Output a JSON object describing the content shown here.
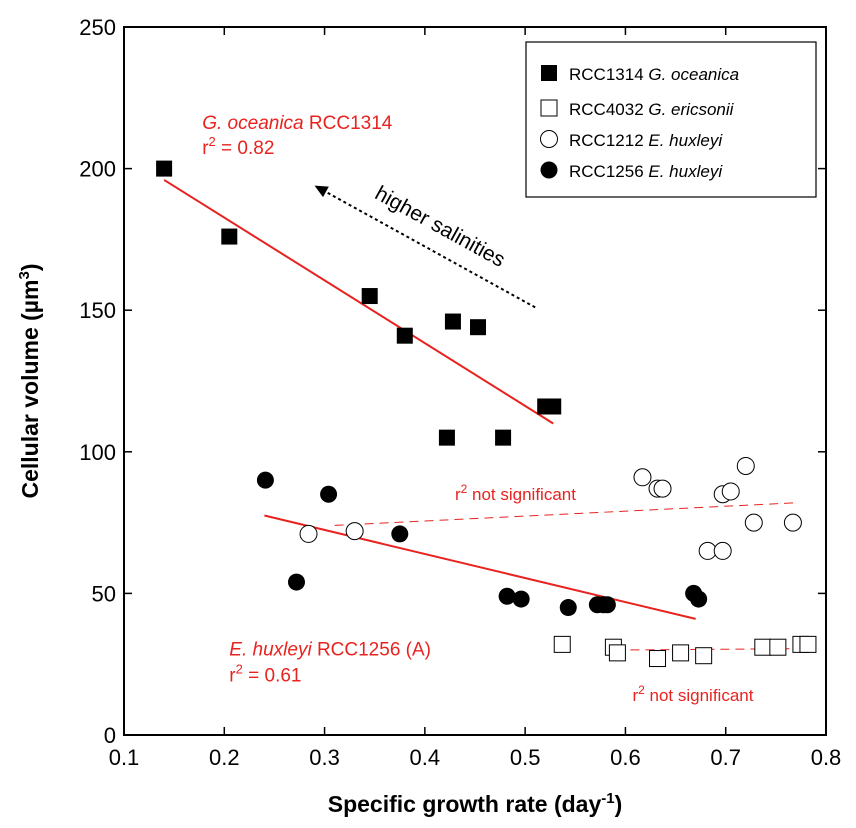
{
  "chart_data": {
    "type": "scatter",
    "xlabel": "Specific growth rate (day",
    "xlabel_sup": "-1",
    "xlabel_end": ")",
    "ylabel": "Cellular volume (µm",
    "ylabel_sup": "3",
    "ylabel_end": ")",
    "xlim": [
      0.1,
      0.8
    ],
    "ylim": [
      0,
      250
    ],
    "xticks": [
      0.1,
      0.2,
      0.3,
      0.4,
      0.5,
      0.6,
      0.7,
      0.8
    ],
    "xtick_labels": [
      "0.1",
      "0.2",
      "0.3",
      "0.4",
      "0.5",
      "0.6",
      "0.7",
      "0.8"
    ],
    "yticks": [
      0,
      50,
      100,
      150,
      200,
      250
    ],
    "ytick_labels": [
      "0",
      "50",
      "100",
      "150",
      "200",
      "250"
    ],
    "legend_position": "top-right",
    "colors": {
      "axis": "#000000",
      "fit": "#e8231f",
      "annotation": "#e8231f",
      "marker": "#000000"
    },
    "series": [
      {
        "name": "RCC1314",
        "name_italic": "G. oceanica",
        "marker": "square-filled",
        "points": [
          [
            0.14,
            200
          ],
          [
            0.205,
            176
          ],
          [
            0.345,
            155
          ],
          [
            0.38,
            141
          ],
          [
            0.422,
            105
          ],
          [
            0.428,
            146
          ],
          [
            0.453,
            144
          ],
          [
            0.478,
            105
          ],
          [
            0.52,
            116
          ],
          [
            0.528,
            116
          ]
        ]
      },
      {
        "name": "RCC4032",
        "name_italic": "G. ericsonii",
        "marker": "square-open",
        "points": [
          [
            0.537,
            32
          ],
          [
            0.588,
            31
          ],
          [
            0.592,
            29
          ],
          [
            0.632,
            27
          ],
          [
            0.655,
            29
          ],
          [
            0.678,
            28
          ],
          [
            0.737,
            31
          ],
          [
            0.752,
            31
          ],
          [
            0.775,
            32
          ],
          [
            0.782,
            32
          ]
        ]
      },
      {
        "name": "RCC1212",
        "name_italic": "E. huxleyi",
        "marker": "circle-open",
        "points": [
          [
            0.284,
            71
          ],
          [
            0.33,
            72
          ],
          [
            0.617,
            91
          ],
          [
            0.632,
            87
          ],
          [
            0.637,
            87
          ],
          [
            0.682,
            65
          ],
          [
            0.697,
            65
          ],
          [
            0.697,
            85
          ],
          [
            0.705,
            86
          ],
          [
            0.72,
            95
          ],
          [
            0.728,
            75
          ],
          [
            0.767,
            75
          ]
        ]
      },
      {
        "name": "RCC1256",
        "name_italic": "E. huxleyi",
        "marker": "circle-filled",
        "points": [
          [
            0.241,
            90
          ],
          [
            0.272,
            54
          ],
          [
            0.304,
            85
          ],
          [
            0.375,
            71
          ],
          [
            0.482,
            49
          ],
          [
            0.496,
            48
          ],
          [
            0.543,
            45
          ],
          [
            0.572,
            46
          ],
          [
            0.578,
            46
          ],
          [
            0.582,
            46
          ],
          [
            0.668,
            50
          ],
          [
            0.673,
            48
          ]
        ]
      }
    ],
    "fits": [
      {
        "style": "solid",
        "x": [
          0.14,
          0.528
        ],
        "y": [
          196,
          110
        ]
      },
      {
        "style": "solid",
        "x": [
          0.24,
          0.67
        ],
        "y": [
          77.5,
          41
        ]
      },
      {
        "style": "dashed",
        "x": [
          0.31,
          0.77
        ],
        "y": [
          74,
          82
        ]
      },
      {
        "style": "dashed",
        "x": [
          0.59,
          0.78
        ],
        "y": [
          30,
          30.5
        ]
      }
    ],
    "annotations": {
      "oceanica_fit": {
        "species": "G. oceanica",
        "strain": " RCC1314",
        "r2_prefix": "r",
        "r2_sup": "2",
        "r2_value": " = 0.82",
        "x": 0.178,
        "y": 214
      },
      "huxleyi_fit": {
        "species": "E. huxleyi",
        "strain": " RCC1256 (A)",
        "r2_prefix": "r",
        "r2_sup": "2",
        "r2_value": " = 0.61",
        "x": 0.205,
        "y": 28
      },
      "ns_upper": {
        "prefix": "r",
        "sup": "2",
        "text": " not significant",
        "x": 0.43,
        "y": 83
      },
      "ns_lower": {
        "prefix": "r",
        "sup": "2",
        "text": " not significant",
        "x": 0.607,
        "y": 12
      },
      "salinity": {
        "text": "higher salinities",
        "from": [
          0.51,
          151
        ],
        "to": [
          0.29,
          194
        ]
      }
    }
  }
}
